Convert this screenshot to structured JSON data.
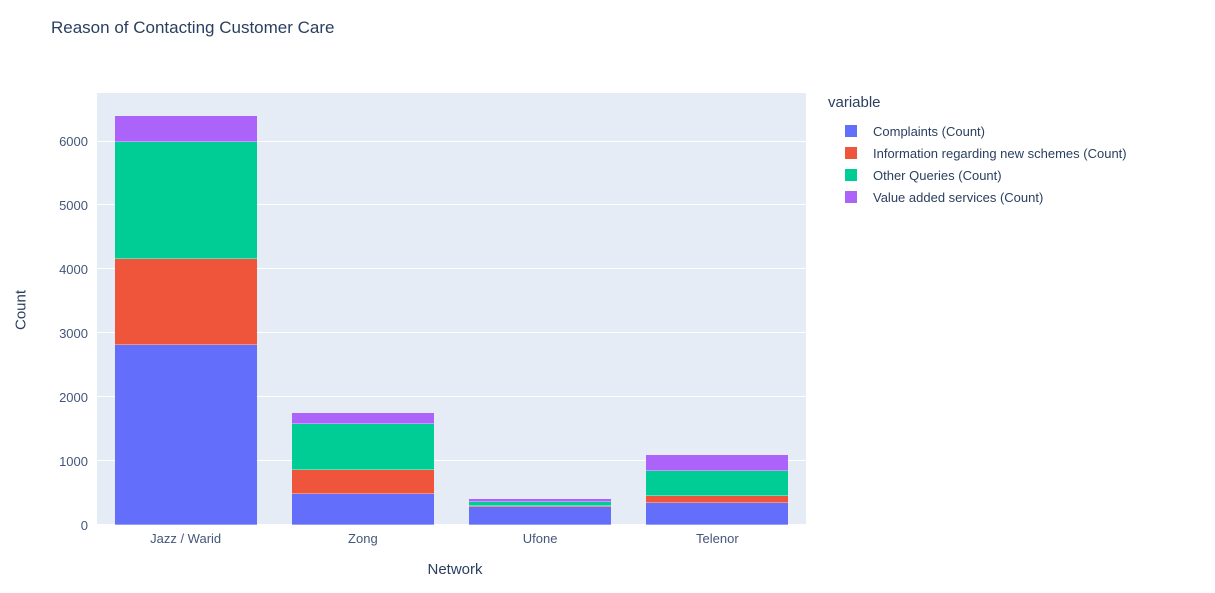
{
  "title": "Reason of Contacting Customer Care",
  "chart_data": {
    "type": "bar",
    "stacked": true,
    "title": "Reason of Contacting Customer Care",
    "xlabel": "Network",
    "ylabel": "Count",
    "legend_title": "variable",
    "legend_position": "right",
    "grid": true,
    "plot_bg": "#E5ECF6",
    "grid_color": "#FFFFFF",
    "ylim": [
      0,
      6760
    ],
    "yticks": [
      0,
      1000,
      2000,
      3000,
      4000,
      5000,
      6000
    ],
    "categories": [
      "Jazz / Warid",
      "Zong",
      "Ufone",
      "Telenor"
    ],
    "series": [
      {
        "name": "Complaints (Count)",
        "color": "#636EFA",
        "values": [
          2820,
          485,
          280,
          350
        ]
      },
      {
        "name": "Information regarding new schemes (Count)",
        "color": "#EF553B",
        "values": [
          1340,
          375,
          15,
          105
        ]
      },
      {
        "name": "Other Queries (Count)",
        "color": "#00CC96",
        "values": [
          1840,
          720,
          65,
          390
        ]
      },
      {
        "name": "Value added services (Count)",
        "color": "#AB63FA",
        "values": [
          400,
          180,
          40,
          250
        ]
      }
    ]
  }
}
